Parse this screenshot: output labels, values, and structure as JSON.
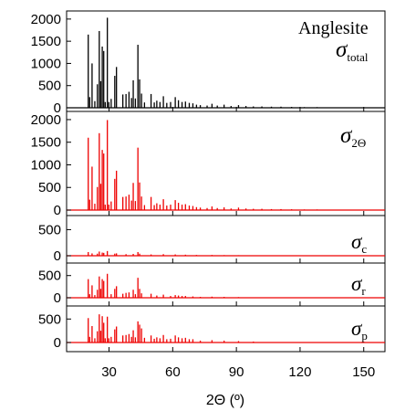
{
  "figure": {
    "title": "Anglesite",
    "xlabel": "2Θ (º)",
    "x_ticks": [
      30,
      60,
      90,
      120,
      150
    ],
    "xlim": [
      10,
      160
    ]
  },
  "colors": {
    "black_series": "#000000",
    "red_series": "#ee0000"
  },
  "chart_data": [
    {
      "type": "bar",
      "name": "σtotal",
      "annotation": {
        "symbol": "σ",
        "subscript": "total"
      },
      "color": "#000000",
      "ylim": [
        0,
        2100
      ],
      "yticks": [
        0,
        500,
        1000,
        1500,
        2000
      ],
      "x": [
        20.2,
        20.9,
        22.0,
        23.3,
        24.5,
        25.4,
        26.1,
        26.8,
        27.5,
        28.2,
        29.2,
        29.9,
        31.0,
        32.7,
        33.5,
        36.5,
        38.0,
        39.4,
        40.6,
        41.4,
        42.4,
        43.6,
        44.4,
        45.3,
        46.7,
        49.8,
        51.3,
        52.5,
        54.0,
        55.6,
        57.2,
        59.0,
        61.2,
        62.7,
        64.4,
        66.0,
        67.8,
        69.5,
        71.2,
        73.0,
        76.2,
        78.5,
        81.0,
        84.2,
        87.5,
        91.0,
        94.5,
        98.0,
        102.0,
        106.5,
        111.0,
        116.0,
        122.0,
        128.0
      ],
      "values": [
        1650,
        240,
        1000,
        150,
        530,
        1730,
        600,
        1380,
        1280,
        130,
        2030,
        130,
        200,
        720,
        920,
        300,
        310,
        360,
        220,
        620,
        210,
        1420,
        640,
        320,
        120,
        310,
        120,
        160,
        130,
        260,
        110,
        130,
        240,
        170,
        130,
        140,
        110,
        100,
        70,
        60,
        50,
        90,
        50,
        70,
        40,
        60,
        40,
        30,
        30,
        25,
        25,
        20,
        15,
        15
      ]
    },
    {
      "type": "bar",
      "name": "σ2Θ",
      "annotation": {
        "symbol": "σ",
        "subscript": "2Θ"
      },
      "color": "#ee0000",
      "ylim": [
        0,
        2100
      ],
      "yticks": [
        0,
        500,
        1000,
        1500,
        2000
      ],
      "x": [
        20.2,
        20.9,
        22.0,
        23.3,
        24.5,
        25.4,
        26.1,
        26.8,
        27.5,
        28.2,
        29.2,
        29.9,
        31.0,
        32.7,
        33.5,
        36.5,
        38.0,
        39.4,
        40.6,
        41.4,
        42.4,
        43.6,
        44.4,
        45.3,
        46.7,
        49.8,
        51.3,
        52.5,
        54.0,
        55.6,
        57.2,
        59.0,
        61.2,
        62.7,
        64.4,
        66.0,
        67.8,
        69.5,
        71.2,
        73.0,
        76.2,
        78.5,
        81.0,
        84.2,
        87.5,
        91.0,
        94.5,
        98.0,
        102.0,
        106.5,
        111.0,
        116.0,
        122.0,
        128.0
      ],
      "values": [
        1600,
        230,
        960,
        140,
        510,
        1700,
        580,
        1330,
        1250,
        120,
        1990,
        120,
        190,
        690,
        870,
        290,
        300,
        340,
        210,
        600,
        200,
        1380,
        610,
        300,
        110,
        290,
        110,
        150,
        120,
        240,
        100,
        120,
        220,
        160,
        120,
        130,
        100,
        90,
        65,
        55,
        45,
        80,
        45,
        60,
        35,
        55,
        35,
        28,
        28,
        22,
        22,
        18,
        14,
        14
      ]
    },
    {
      "type": "bar",
      "name": "σc",
      "annotation": {
        "symbol": "σ",
        "subscript": "c"
      },
      "color": "#ee0000",
      "ylim": [
        0,
        700
      ],
      "yticks": [
        0,
        500
      ],
      "x": [
        20.2,
        22.0,
        24.5,
        25.4,
        26.8,
        27.5,
        29.2,
        32.7,
        33.5,
        38.0,
        41.4,
        43.6,
        44.4,
        49.8,
        55.6,
        61.2,
        66.0,
        71.2,
        78.5,
        84.2,
        91.0
      ],
      "values": [
        70,
        45,
        40,
        80,
        60,
        55,
        90,
        40,
        45,
        30,
        35,
        70,
        40,
        25,
        30,
        25,
        20,
        15,
        15,
        12,
        10
      ]
    },
    {
      "type": "bar",
      "name": "σr",
      "annotation": {
        "symbol": "σ",
        "subscript": "r"
      },
      "color": "#ee0000",
      "ylim": [
        0,
        700
      ],
      "yticks": [
        0,
        500
      ],
      "x": [
        20.2,
        20.9,
        22.0,
        23.3,
        24.5,
        25.4,
        26.1,
        26.8,
        27.5,
        29.2,
        31.0,
        32.7,
        33.5,
        36.5,
        38.0,
        39.4,
        41.4,
        42.4,
        43.6,
        44.4,
        45.3,
        49.8,
        52.5,
        55.6,
        59.0,
        61.2,
        62.7,
        64.4,
        66.0,
        69.5,
        73.0,
        78.5,
        84.2,
        91.0,
        98.0,
        106.5
      ],
      "values": [
        420,
        80,
        280,
        60,
        180,
        480,
        200,
        420,
        380,
        540,
        80,
        200,
        260,
        90,
        110,
        120,
        180,
        80,
        450,
        200,
        100,
        90,
        50,
        70,
        40,
        60,
        50,
        40,
        40,
        30,
        20,
        25,
        20,
        15,
        10,
        8
      ]
    },
    {
      "type": "bar",
      "name": "σp",
      "annotation": {
        "symbol": "σ",
        "subscript": "p"
      },
      "color": "#ee0000",
      "ylim": [
        0,
        700
      ],
      "yticks": [
        0,
        500
      ],
      "x": [
        20.2,
        20.9,
        22.0,
        23.3,
        24.5,
        25.4,
        26.1,
        26.8,
        27.5,
        28.2,
        29.2,
        29.9,
        31.0,
        32.7,
        33.5,
        36.5,
        38.0,
        39.4,
        40.6,
        41.4,
        42.4,
        43.6,
        44.4,
        45.3,
        46.7,
        49.8,
        51.3,
        52.5,
        54.0,
        55.6,
        57.2,
        59.0,
        61.2,
        62.7,
        64.4,
        66.0,
        67.8,
        69.5,
        73.0,
        78.5,
        84.2,
        91.0,
        98.0
      ],
      "values": [
        520,
        120,
        350,
        90,
        240,
        600,
        250,
        560,
        420,
        90,
        550,
        90,
        120,
        280,
        340,
        150,
        160,
        180,
        120,
        260,
        110,
        450,
        380,
        300,
        100,
        150,
        80,
        110,
        90,
        160,
        70,
        80,
        150,
        110,
        90,
        100,
        70,
        70,
        40,
        50,
        40,
        30,
        20
      ]
    }
  ]
}
